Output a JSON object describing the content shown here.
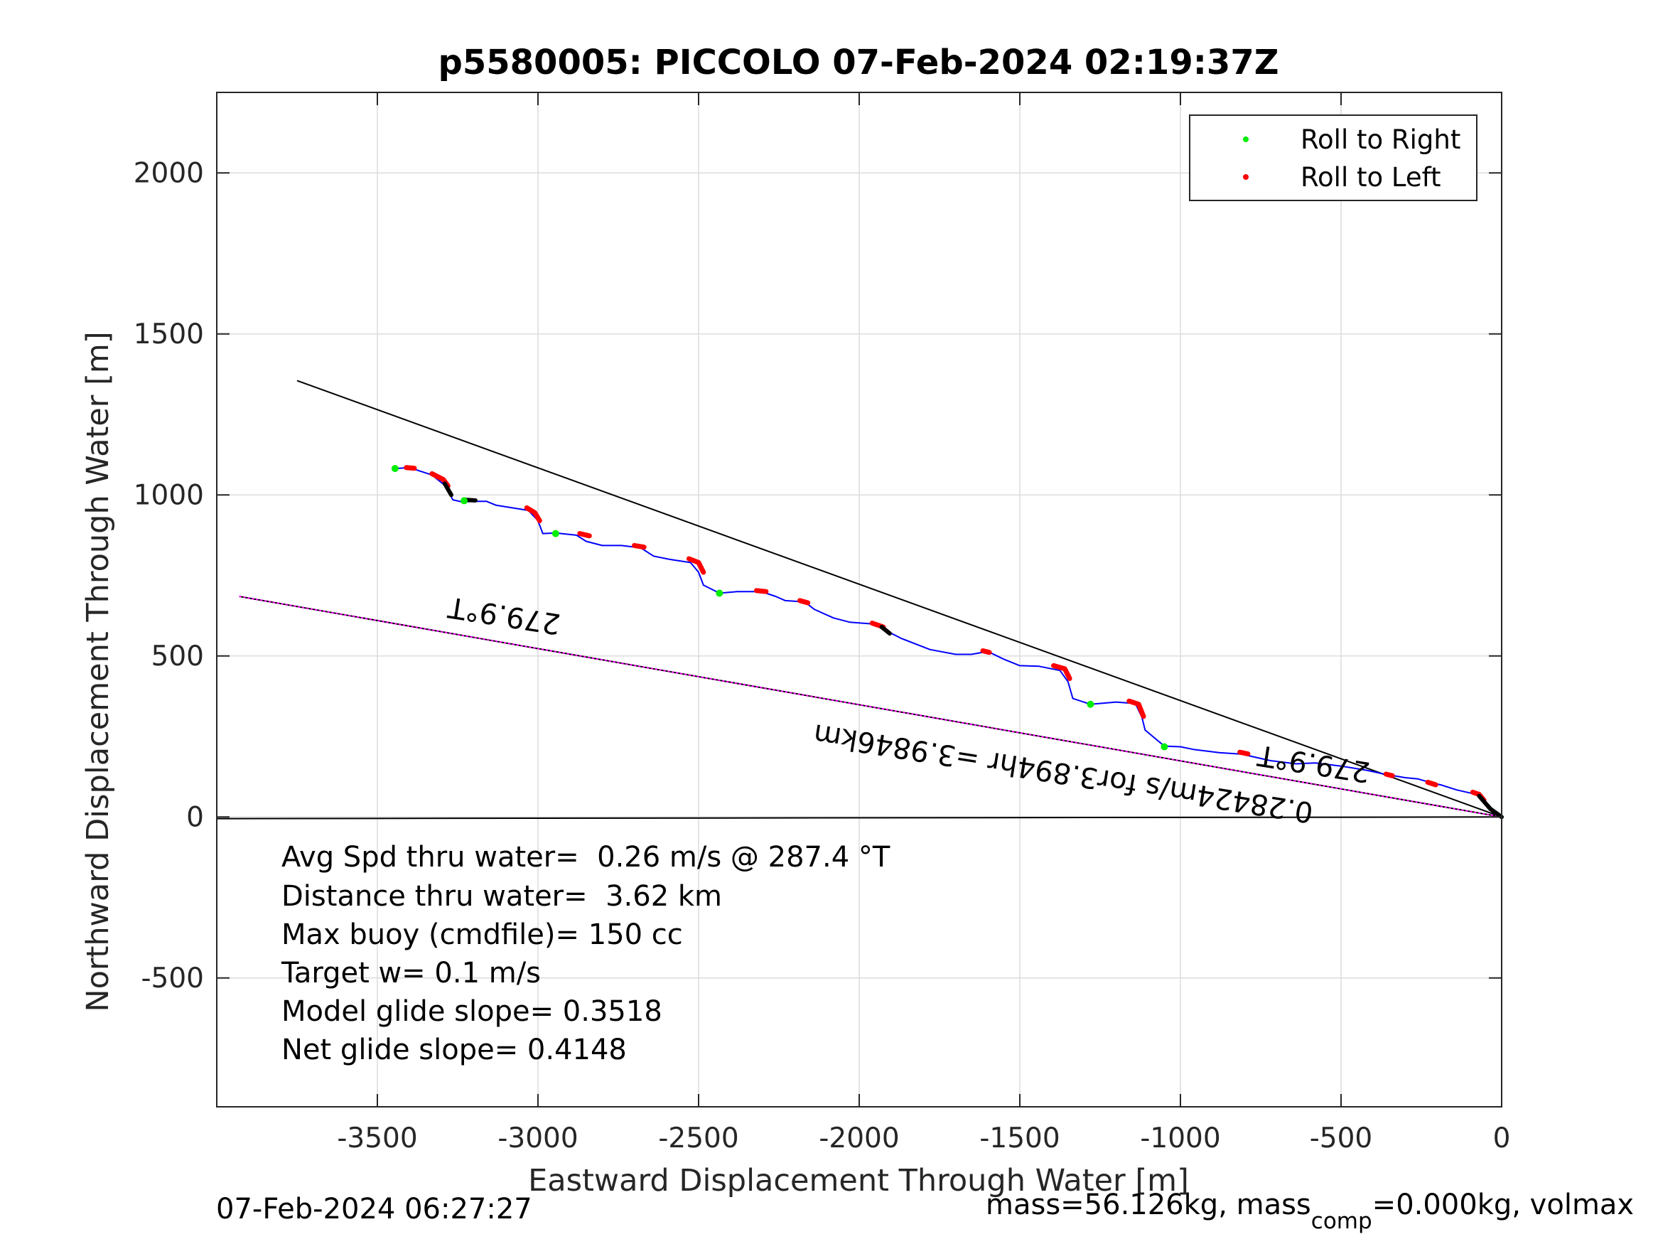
{
  "chart_data": {
    "type": "line",
    "title": "p5580005: PICCOLO 07-Feb-2024 02:19:37Z",
    "xlabel": "Eastward Displacement Through Water [m]",
    "ylabel": "Northward Displacement Through Water [m]",
    "xlim": [
      -4000,
      0
    ],
    "ylim": [
      -900,
      2250
    ],
    "xticks": [
      -3500,
      -3000,
      -2500,
      -2000,
      -1500,
      -1000,
      -500,
      0
    ],
    "yticks": [
      -500,
      0,
      500,
      1000,
      1500,
      2000
    ],
    "grid": true,
    "legend_position": "top-right",
    "legend": [
      {
        "label": "Roll to Right",
        "color": "#00ee00"
      },
      {
        "label": "Roll to Left",
        "color": "#ff0000"
      }
    ],
    "track": {
      "color": "#0000ff",
      "x": [
        -3445,
        -3400,
        -3330,
        -3290,
        -3265,
        -3235,
        -3200,
        -3160,
        -3130,
        -3080,
        -3030,
        -3000,
        -2985,
        -2945,
        -2880,
        -2850,
        -2800,
        -2740,
        -2680,
        -2640,
        -2590,
        -2525,
        -2500,
        -2485,
        -2435,
        -2380,
        -2305,
        -2260,
        -2230,
        -2170,
        -2140,
        -2080,
        -2030,
        -1940,
        -1915,
        -1870,
        -1780,
        -1700,
        -1650,
        -1600,
        -1550,
        -1500,
        -1440,
        -1375,
        -1350,
        -1335,
        -1280,
        -1200,
        -1140,
        -1120,
        -1110,
        -1050,
        -1000,
        -960,
        -880,
        -810,
        -720,
        -640,
        -580,
        -500,
        -420,
        -360,
        -300,
        -260,
        -215,
        -190,
        -140,
        -100,
        -75,
        -60,
        -40,
        -20,
        0
      ],
      "y": [
        1082,
        1085,
        1062,
        1030,
        985,
        978,
        980,
        980,
        968,
        960,
        952,
        920,
        880,
        882,
        875,
        856,
        843,
        843,
        836,
        810,
        800,
        790,
        760,
        720,
        695,
        700,
        700,
        685,
        672,
        668,
        645,
        618,
        605,
        598,
        578,
        555,
        520,
        505,
        505,
        514,
        490,
        470,
        468,
        455,
        420,
        368,
        350,
        357,
        352,
        310,
        270,
        220,
        218,
        210,
        200,
        195,
        175,
        165,
        168,
        158,
        145,
        132,
        122,
        118,
        105,
        100,
        84,
        75,
        70,
        52,
        25,
        10,
        0
      ]
    },
    "roll_right_points": [
      {
        "x": -3445,
        "y": 1082
      },
      {
        "x": -3230,
        "y": 982
      },
      {
        "x": -2945,
        "y": 880
      },
      {
        "x": -2435,
        "y": 695
      },
      {
        "x": -1280,
        "y": 350
      },
      {
        "x": -1050,
        "y": 218
      }
    ],
    "roll_left_segments": [
      {
        "x": [
          -3410,
          -3385
        ],
        "y": [
          1085,
          1083
        ]
      },
      {
        "x": [
          -3330,
          -3295,
          -3280
        ],
        "y": [
          1066,
          1048,
          1028
        ]
      },
      {
        "x": [
          -3035,
          -3010,
          -2995
        ],
        "y": [
          960,
          945,
          920
        ]
      },
      {
        "x": [
          -2870,
          -2840
        ],
        "y": [
          880,
          873
        ]
      },
      {
        "x": [
          -2700,
          -2670
        ],
        "y": [
          843,
          838
        ]
      },
      {
        "x": [
          -2530,
          -2500,
          -2485
        ],
        "y": [
          802,
          790,
          760
        ]
      },
      {
        "x": [
          -2320,
          -2290
        ],
        "y": [
          703,
          700
        ]
      },
      {
        "x": [
          -2185,
          -2160
        ],
        "y": [
          672,
          665
        ]
      },
      {
        "x": [
          -1960,
          -1925
        ],
        "y": [
          602,
          590
        ]
      },
      {
        "x": [
          -1615,
          -1595
        ],
        "y": [
          516,
          511
        ]
      },
      {
        "x": [
          -1395,
          -1360,
          -1345
        ],
        "y": [
          470,
          460,
          430
        ]
      },
      {
        "x": [
          -1160,
          -1130,
          -1115
        ],
        "y": [
          360,
          350,
          312
        ]
      },
      {
        "x": [
          -815,
          -790
        ],
        "y": [
          201,
          196
        ]
      },
      {
        "x": [
          -360,
          -340
        ],
        "y": [
          133,
          128
        ]
      },
      {
        "x": [
          -230,
          -205
        ],
        "y": [
          108,
          100
        ]
      },
      {
        "x": [
          -90,
          -70,
          -55
        ],
        "y": [
          77,
          70,
          52
        ]
      }
    ],
    "black_segments": [
      {
        "x": [
          -3290,
          -3270
        ],
        "y": [
          1035,
          1000
        ]
      },
      {
        "x": [
          -3225,
          -3195
        ],
        "y": [
          985,
          983
        ]
      },
      {
        "x": [
          -1930,
          -1905
        ],
        "y": [
          590,
          570
        ]
      },
      {
        "x": [
          -70,
          -35,
          0
        ],
        "y": [
          65,
          25,
          0
        ]
      }
    ],
    "reference_lines": [
      {
        "name": "upper_heading",
        "color": "#000000",
        "x": [
          -3750,
          0
        ],
        "y": [
          1355,
          0
        ]
      },
      {
        "name": "lower_heading",
        "color": "#000000",
        "x": [
          -3930,
          0
        ],
        "y": [
          685,
          0
        ]
      },
      {
        "name": "zero",
        "color": "#000000",
        "x": [
          -4000,
          0
        ],
        "y": [
          -5,
          0
        ]
      }
    ],
    "magenta_line": {
      "color": "#ff00ff",
      "x": [
        -3930,
        0
      ],
      "y": [
        685,
        0
      ]
    },
    "annotations": {
      "heading_label_1": "279.9°T",
      "heading_label_2": "279.9°T",
      "speed_label": "0.28424m/s for3.894hr =3.9846km"
    }
  },
  "stats": [
    "Avg Spd thru water=  0.26 m/s @ 287.4 °T",
    "Distance thru water=  3.62 km",
    "Max buoy (cmdfile)= 150 cc",
    "Target w= 0.1 m/s",
    "Model glide slope= 0.3518",
    "Net glide slope= 0.4148"
  ],
  "footer": {
    "timestamp": "07-Feb-2024 06:27:27",
    "mass_text": "mass=56.126kg, mass",
    "mass_sub": "comp",
    "mass_tail": "=0.000kg, volmax"
  }
}
